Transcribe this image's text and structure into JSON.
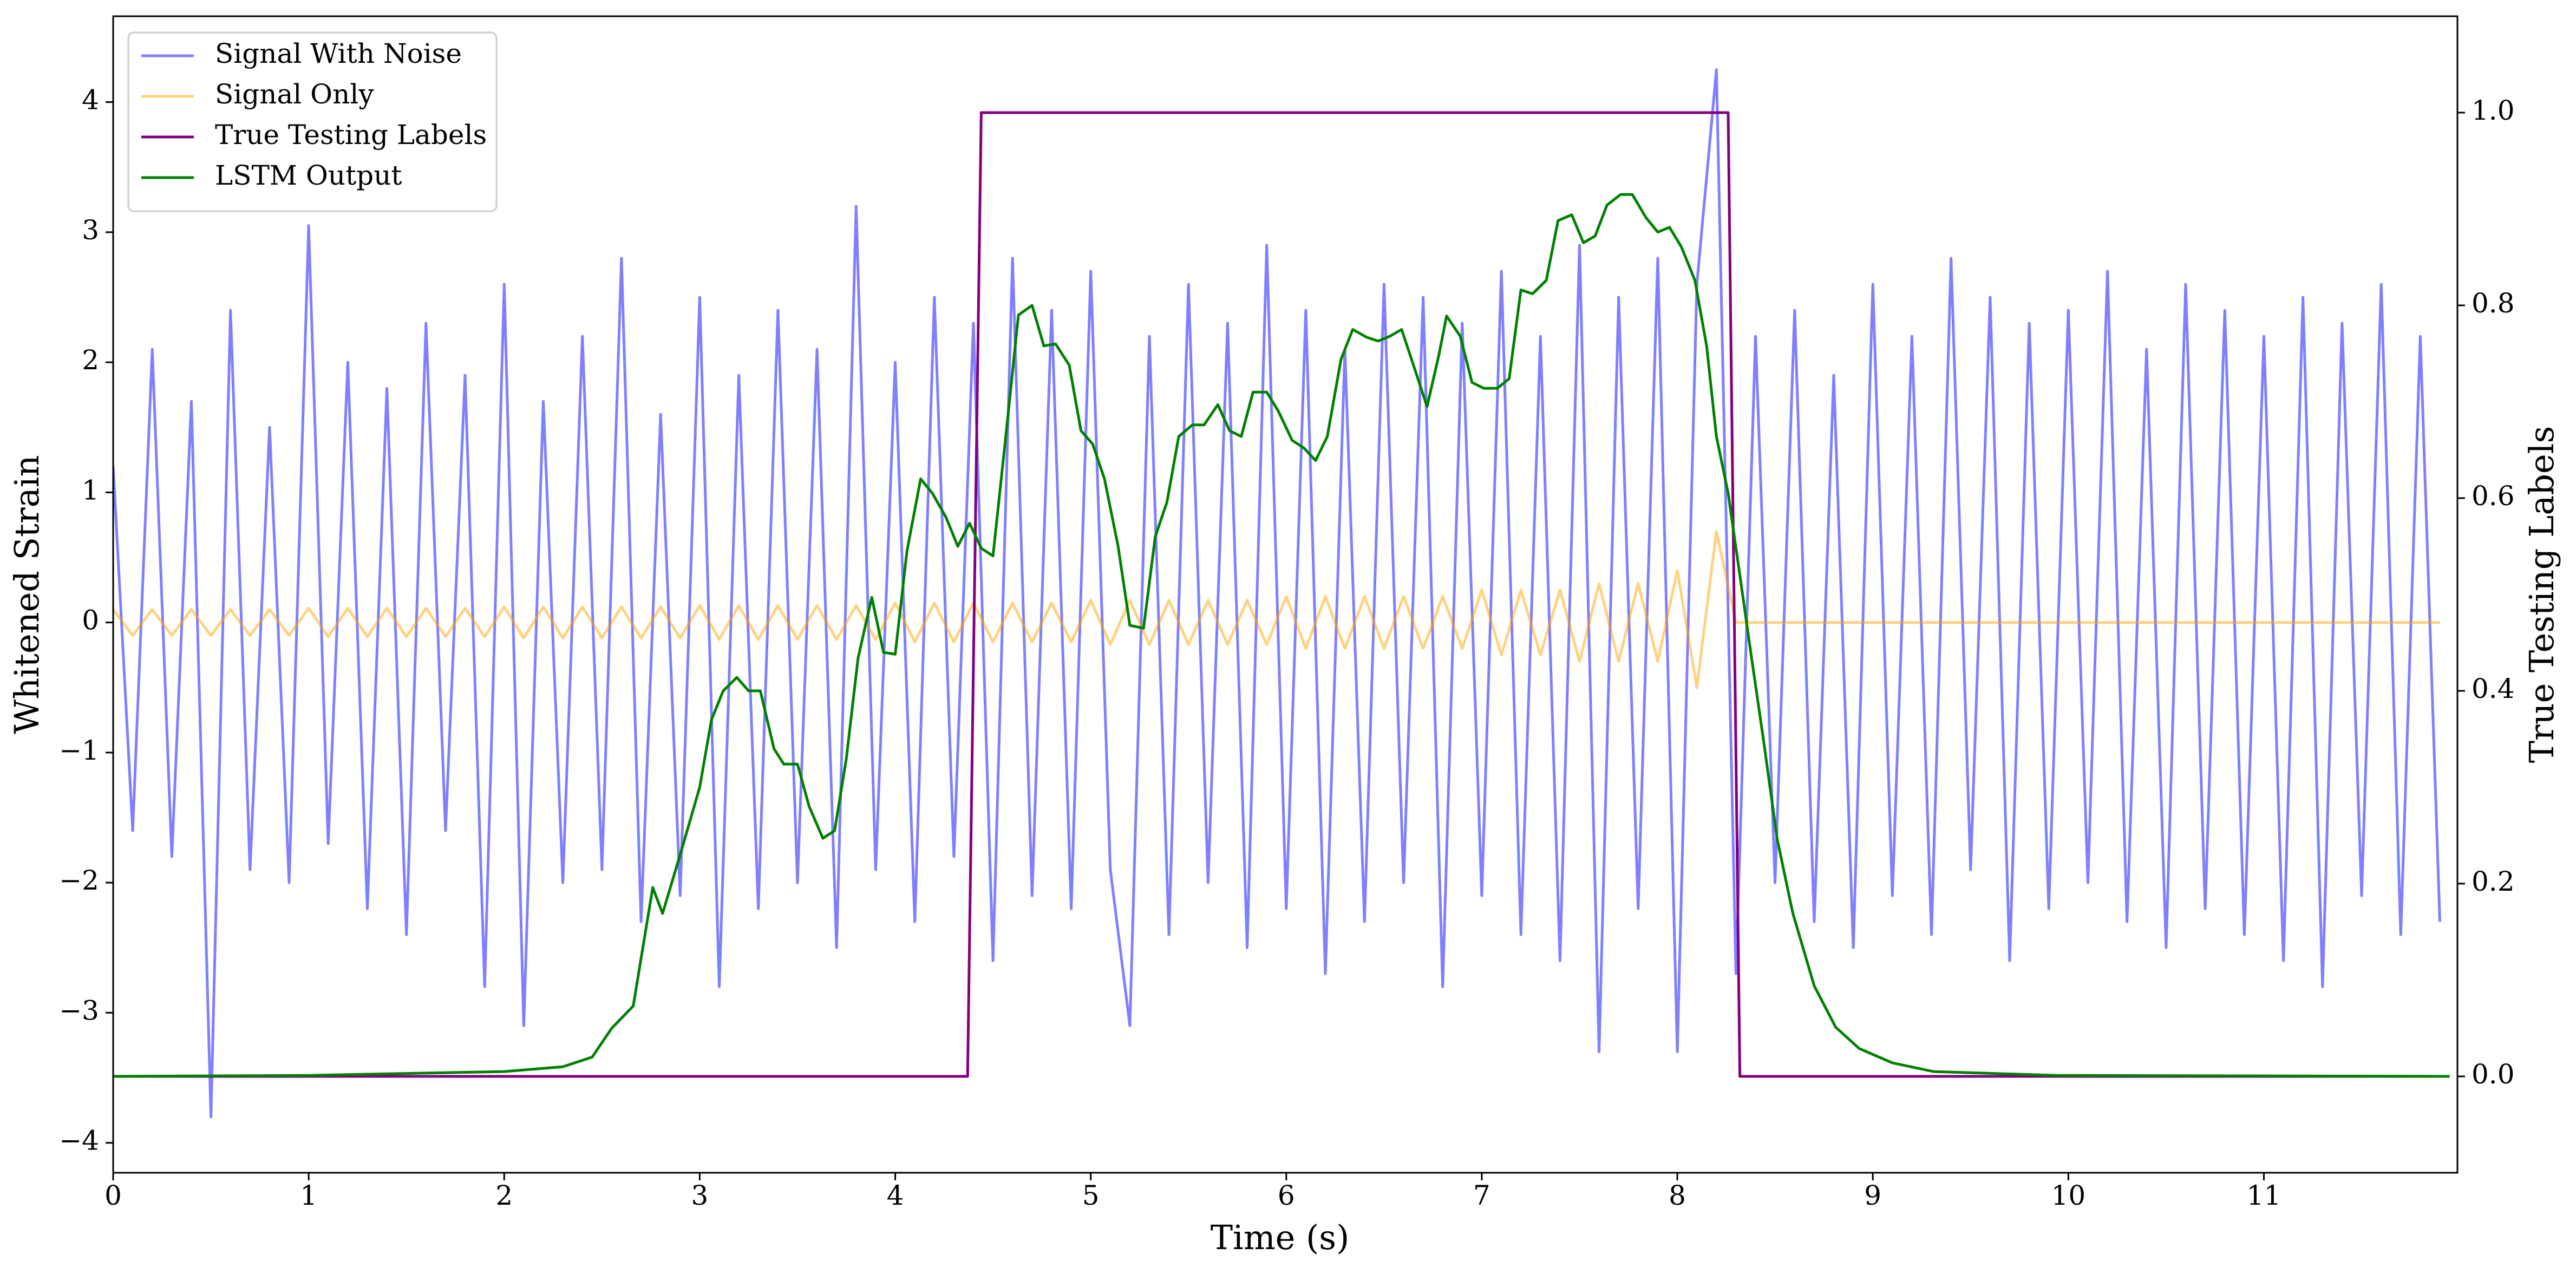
{
  "chart_data": {
    "type": "line",
    "x_label": "Time (s)",
    "y_label": "Whitened Strain",
    "y2_label": "True Testing Labels",
    "xlim": [
      0,
      11.99
    ],
    "ylim": [
      -4.23,
      4.66
    ],
    "y2lim": [
      -0.1,
      1.1
    ],
    "xticks": [
      0,
      1,
      2,
      3,
      4,
      5,
      6,
      7,
      8,
      9,
      10,
      11
    ],
    "yticks": [
      {
        "value": -4,
        "label": "−4"
      },
      {
        "value": -3,
        "label": "−3"
      },
      {
        "value": -2,
        "label": "−2"
      },
      {
        "value": -1,
        "label": "−1"
      },
      0,
      1,
      2,
      3,
      4
    ],
    "y2ticks": [
      {
        "value": 0,
        "label": "0.0"
      },
      {
        "value": 0.2,
        "label": "0.2"
      },
      {
        "value": 0.4,
        "label": "0.4"
      },
      {
        "value": 0.6,
        "label": "0.6"
      },
      {
        "value": 0.8,
        "label": "0.8"
      },
      {
        "value": 1,
        "label": "1.0"
      }
    ],
    "legend": "upper left",
    "x": [
      0,
      0.1,
      0.2,
      0.3,
      0.4,
      0.5,
      0.6,
      0.7,
      0.8,
      0.9,
      1,
      1.1,
      1.2,
      1.3,
      1.4,
      1.5,
      1.6,
      1.7,
      1.8,
      1.9,
      2,
      2.1,
      2.2,
      2.3,
      2.4,
      2.5,
      2.6,
      2.7,
      2.8,
      2.9,
      3,
      3.1,
      3.2,
      3.3,
      3.4,
      3.5,
      3.6,
      3.7,
      3.8,
      3.9,
      4,
      4.1,
      4.2,
      4.3,
      4.4,
      4.5,
      4.6,
      4.7,
      4.8,
      4.9,
      5,
      5.1,
      5.2,
      5.3,
      5.4,
      5.5,
      5.6,
      5.7,
      5.8,
      5.9,
      6,
      6.1,
      6.2,
      6.3,
      6.4,
      6.5,
      6.6,
      6.7,
      6.8,
      6.9,
      7,
      7.1,
      7.2,
      7.3,
      7.4,
      7.5,
      7.6,
      7.7,
      7.8,
      7.9,
      8,
      8.1,
      8.2,
      8.3,
      8.4,
      8.5,
      8.6,
      8.7,
      8.8,
      8.9,
      9,
      9.1,
      9.2,
      9.3,
      9.4,
      9.5,
      9.6,
      9.7,
      9.8,
      9.9,
      10,
      10.1,
      10.2,
      10.3,
      10.4,
      10.5,
      10.6,
      10.7,
      10.8,
      10.9,
      11,
      11.1,
      11.2,
      11.3,
      11.4,
      11.5,
      11.6,
      11.7,
      11.8,
      11.9
    ],
    "series": [
      {
        "name": "Signal With Noise",
        "color": "#0000ff",
        "opacity": 0.5,
        "values": [
          1.2,
          -1.6,
          2.1,
          -1.8,
          1.7,
          -3.8,
          2.4,
          -1.9,
          1.5,
          -2.0,
          3.05,
          -1.7,
          2.0,
          -2.2,
          1.8,
          -2.4,
          2.3,
          -1.6,
          1.9,
          -2.8,
          2.6,
          -3.1,
          1.7,
          -2.0,
          2.2,
          -1.9,
          2.8,
          -2.3,
          1.6,
          -2.1,
          2.5,
          -2.8,
          1.9,
          -2.2,
          2.4,
          -2.0,
          2.1,
          -2.5,
          3.2,
          -1.9,
          2.0,
          -2.3,
          2.5,
          -1.8,
          2.3,
          -2.6,
          2.8,
          -2.1,
          2.4,
          -2.2,
          2.7,
          -1.9,
          -3.1,
          2.2,
          -2.4,
          2.6,
          -2.0,
          2.3,
          -2.5,
          2.9,
          -2.2,
          2.4,
          -2.7,
          2.1,
          -2.3,
          2.6,
          -2.0,
          2.5,
          -2.8,
          2.3,
          -2.1,
          2.7,
          -2.4,
          2.2,
          -2.6,
          2.9,
          -3.3,
          2.5,
          -2.2,
          2.8,
          -3.3,
          2.6,
          4.25,
          -2.7,
          2.2,
          -2.0,
          2.4,
          -2.3,
          1.9,
          -2.5,
          2.6,
          -2.1,
          2.2,
          -2.4,
          2.8,
          -1.9,
          2.5,
          -2.6,
          2.3,
          -2.2,
          2.4,
          -2.0,
          2.7,
          -2.3,
          2.1,
          -2.5,
          2.6,
          -2.2,
          2.4,
          -2.4,
          2.2,
          -2.6,
          2.5,
          -2.8,
          2.3,
          -2.1,
          2.6,
          -2.4,
          2.2,
          -2.3
        ]
      },
      {
        "name": "Signal Only",
        "color": "#ffa500",
        "opacity": 0.5,
        "values": [
          0.1,
          -0.1,
          0.1,
          -0.1,
          0.1,
          -0.1,
          0.1,
          -0.1,
          0.1,
          -0.1,
          0.11,
          -0.11,
          0.11,
          -0.11,
          0.11,
          -0.11,
          0.11,
          -0.11,
          0.11,
          -0.11,
          0.12,
          -0.12,
          0.12,
          -0.12,
          0.12,
          -0.12,
          0.12,
          -0.12,
          0.12,
          -0.12,
          0.13,
          -0.13,
          0.13,
          -0.13,
          0.13,
          -0.13,
          0.13,
          -0.13,
          0.13,
          -0.13,
          0.15,
          -0.15,
          0.15,
          -0.15,
          0.15,
          -0.15,
          0.15,
          -0.15,
          0.15,
          -0.15,
          0.17,
          -0.17,
          0.17,
          -0.17,
          0.17,
          -0.17,
          0.17,
          -0.17,
          0.17,
          -0.17,
          0.2,
          -0.2,
          0.2,
          -0.2,
          0.2,
          -0.2,
          0.2,
          -0.2,
          0.2,
          -0.2,
          0.25,
          -0.25,
          0.25,
          -0.25,
          0.25,
          -0.3,
          0.3,
          -0.3,
          0.3,
          -0.3,
          0.4,
          -0.5,
          0.7,
          0,
          0,
          0,
          0,
          0,
          0,
          0,
          0,
          0,
          0,
          0,
          0,
          0,
          0,
          0,
          0,
          0,
          0,
          0,
          0,
          0,
          0,
          0,
          0,
          0,
          0,
          0,
          0,
          0,
          0,
          0,
          0,
          0,
          0,
          0,
          0,
          0
        ]
      },
      {
        "name": "True Testing Labels",
        "color": "#800080",
        "axis": "y2",
        "x": [
          0,
          4.37,
          4.44,
          8.26,
          8.32,
          11.95
        ],
        "values": [
          0,
          0,
          1,
          1,
          0,
          0
        ]
      },
      {
        "name": "LSTM Output",
        "color": "#008000",
        "axis": "y2",
        "x": [
          0,
          1,
          2,
          2.3,
          2.45,
          2.55,
          2.66,
          2.76,
          2.81,
          2.9,
          3.0,
          3.06,
          3.12,
          3.19,
          3.25,
          3.31,
          3.38,
          3.43,
          3.5,
          3.56,
          3.63,
          3.69,
          3.75,
          3.81,
          3.88,
          3.94,
          4.0,
          4.06,
          4.13,
          4.19,
          4.26,
          4.32,
          4.38,
          4.44,
          4.5,
          4.57,
          4.63,
          4.7,
          4.76,
          4.82,
          4.89,
          4.95,
          5.01,
          5.07,
          5.14,
          5.2,
          5.27,
          5.33,
          5.39,
          5.45,
          5.52,
          5.58,
          5.65,
          5.71,
          5.77,
          5.83,
          5.9,
          5.96,
          6.03,
          6.09,
          6.15,
          6.21,
          6.28,
          6.34,
          6.41,
          6.47,
          6.53,
          6.59,
          6.66,
          6.72,
          6.78,
          6.82,
          6.89,
          6.95,
          7.01,
          7.08,
          7.14,
          7.2,
          7.26,
          7.33,
          7.39,
          7.46,
          7.52,
          7.58,
          7.64,
          7.71,
          7.77,
          7.84,
          7.9,
          7.96,
          8.02,
          8.09,
          8.15,
          8.2,
          8.26,
          8.32,
          8.38,
          8.44,
          8.51,
          8.59,
          8.7,
          8.81,
          8.93,
          9.1,
          9.31,
          9.94,
          11.95
        ],
        "values": [
          0,
          0.001,
          0.005,
          0.01,
          0.02,
          0.05,
          0.073,
          0.196,
          0.169,
          0.23,
          0.3,
          0.37,
          0.4,
          0.414,
          0.4,
          0.4,
          0.34,
          0.324,
          0.324,
          0.28,
          0.247,
          0.255,
          0.33,
          0.434,
          0.497,
          0.44,
          0.438,
          0.545,
          0.62,
          0.605,
          0.58,
          0.55,
          0.574,
          0.548,
          0.54,
          0.673,
          0.79,
          0.8,
          0.758,
          0.76,
          0.738,
          0.67,
          0.656,
          0.62,
          0.55,
          0.468,
          0.465,
          0.56,
          0.596,
          0.664,
          0.676,
          0.676,
          0.697,
          0.67,
          0.664,
          0.71,
          0.71,
          0.69,
          0.66,
          0.652,
          0.639,
          0.664,
          0.744,
          0.775,
          0.767,
          0.763,
          0.768,
          0.775,
          0.732,
          0.695,
          0.748,
          0.789,
          0.768,
          0.72,
          0.714,
          0.714,
          0.724,
          0.816,
          0.812,
          0.826,
          0.888,
          0.894,
          0.865,
          0.872,
          0.904,
          0.915,
          0.915,
          0.891,
          0.876,
          0.881,
          0.861,
          0.826,
          0.758,
          0.664,
          0.605,
          0.52,
          0.434,
          0.35,
          0.247,
          0.17,
          0.094,
          0.051,
          0.029,
          0.014,
          0.005,
          0.001,
          0
        ]
      }
    ]
  }
}
